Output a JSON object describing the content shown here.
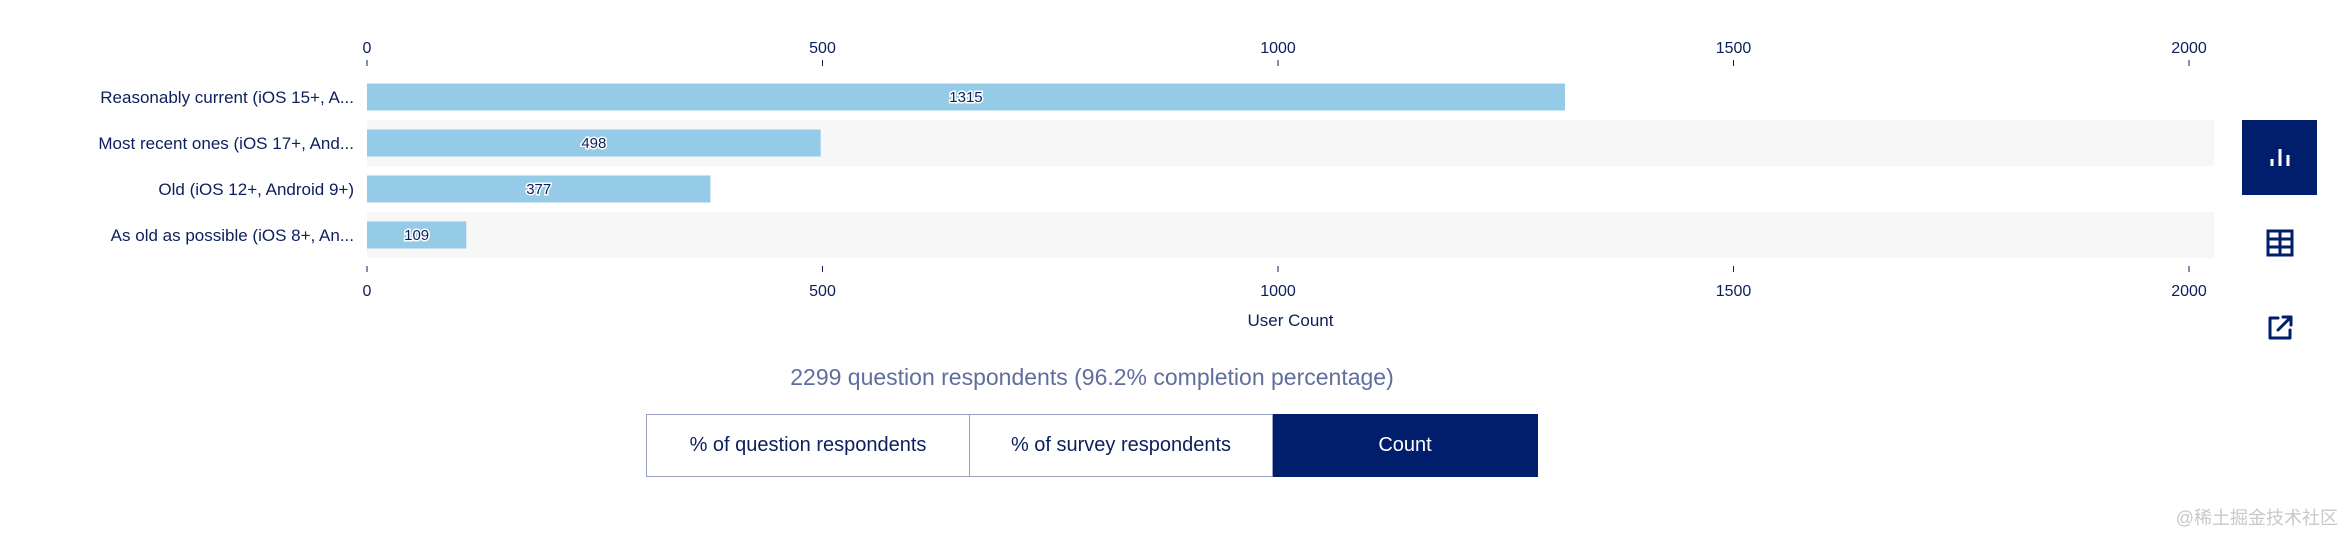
{
  "chart_data": {
    "type": "bar",
    "orientation": "horizontal",
    "categories": [
      "Reasonably current (iOS 15+, A...",
      "Most recent ones (iOS 17+, And...",
      "Old (iOS 12+, Android 9+)",
      "As old as possible (iOS 8+, An..."
    ],
    "values": [
      1315,
      498,
      377,
      109
    ],
    "xlabel": "User Count",
    "ylabel": "",
    "xlim": [
      0,
      2030
    ],
    "ticks": [
      0,
      500,
      1000,
      1500,
      2000
    ],
    "bar_color": "#95cbe6",
    "stripe_color": "#f7f7f7",
    "axis_color": "#0b1f5c"
  },
  "summary": "2299 question respondents (96.2% completion percentage)",
  "modes": [
    {
      "label": "% of question respondents",
      "active": false
    },
    {
      "label": "% of survey respondents",
      "active": false
    },
    {
      "label": "Count",
      "active": true
    }
  ],
  "sidebar": [
    "bar-chart-icon",
    "table-icon",
    "external-link-icon"
  ],
  "watermark": "@稀土掘金技术社区"
}
